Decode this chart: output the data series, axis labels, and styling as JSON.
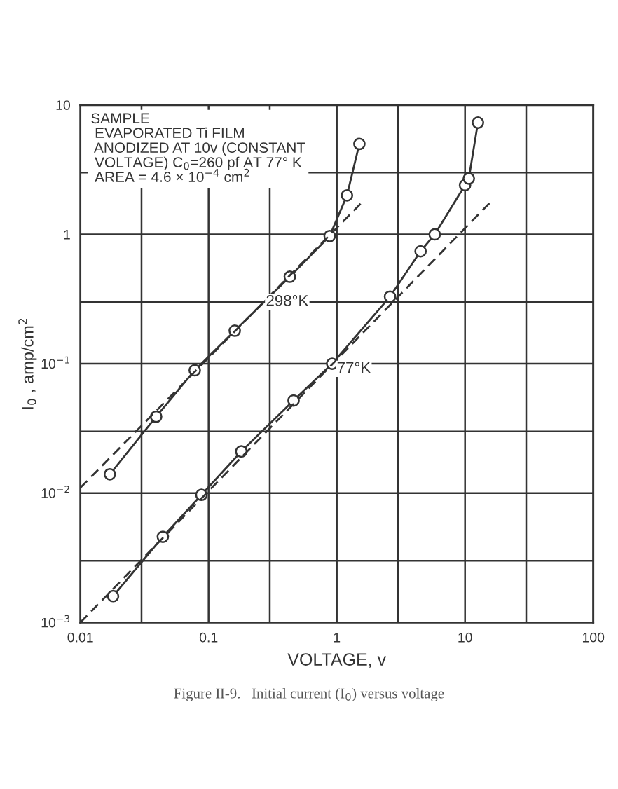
{
  "chart_data": {
    "type": "line",
    "xlabel": "VOLTAGE, v",
    "ylabel": "I$_{0}$ , amp/cm$^{2}$",
    "log": "xy",
    "grid": true,
    "xlim": [
      0.01,
      100
    ],
    "ylim": [
      0.001,
      10
    ],
    "xticks": [
      {
        "value": 0.01,
        "label": "0.01"
      },
      {
        "value": 0.03,
        "label": null
      },
      {
        "value": 0.1,
        "label": "0.1"
      },
      {
        "value": 0.3,
        "label": null
      },
      {
        "value": 1,
        "label": "1"
      },
      {
        "value": 3,
        "label": null
      },
      {
        "value": 10,
        "label": "10"
      },
      {
        "value": 30,
        "label": null
      },
      {
        "value": 100,
        "label": "100"
      }
    ],
    "yticks": [
      {
        "value": 0.001,
        "label": "10$^{−3}$"
      },
      {
        "value": 0.003,
        "label": null
      },
      {
        "value": 0.01,
        "label": "10$^{−2}$"
      },
      {
        "value": 0.03,
        "label": null
      },
      {
        "value": 0.1,
        "label": "10$^{−1}$"
      },
      {
        "value": 0.3,
        "label": null
      },
      {
        "value": 1,
        "label": "1"
      },
      {
        "value": 3,
        "label": null
      },
      {
        "value": 10,
        "label": "10"
      }
    ],
    "series": [
      {
        "color": "#333333",
        "marker": "circle",
        "line_style": "solid",
        "x": [
          0.017,
          0.039,
          0.078,
          0.16,
          0.43,
          0.88,
          1.2,
          1.5
        ],
        "values": [
          0.014,
          0.039,
          0.089,
          0.18,
          0.47,
          0.97,
          2.0,
          5.0
        ]
      },
      {
        "color": "#333333",
        "marker": "circle",
        "line_style": "solid",
        "x": [
          0.018,
          0.044,
          0.088,
          0.18,
          0.46,
          0.92,
          2.6,
          4.5,
          5.8,
          10,
          10.7,
          12.6
        ],
        "values": [
          0.0016,
          0.0046,
          0.0097,
          0.021,
          0.052,
          0.1,
          0.33,
          0.74,
          1.0,
          2.4,
          2.7,
          7.3
        ]
      },
      {
        "color": "#333333",
        "marker": "none",
        "line_style": "dashed",
        "x": [
          0.01,
          1.6
        ],
        "values": [
          0.011,
          1.8
        ]
      },
      {
        "color": "#333333",
        "marker": "none",
        "line_style": "dashed",
        "x": [
          0.01,
          16
        ],
        "values": [
          0.001,
          1.8
        ]
      }
    ],
    "annotations": [
      "SAMPLE\n EVAPORATED Ti FILM\n ANODIZED AT 10v (CONSTANT\n VOLTAGE) C$_{0}$=260 pf AT 77° K\n AREA = 4.6 × 10$^{−4}$ cm$^{2}$",
      {
        "text": "298°K",
        "x": 0.28,
        "y": 0.28
      },
      {
        "text": "77°K",
        "x": 1.0,
        "y": 0.085
      },
      "Figure II-9.   Initial current (I$_{0}$) versus voltage"
    ]
  }
}
